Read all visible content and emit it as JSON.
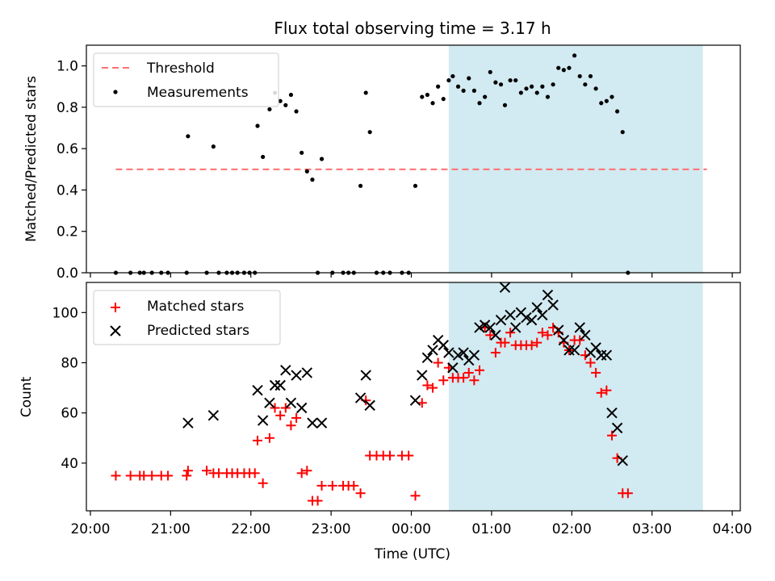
{
  "chart_data": [
    {
      "type": "scatter",
      "title": "Flux total observing time = 3.17 h",
      "xlabel": "",
      "ylabel": "Matched/Predicted stars",
      "xlim": [
        "19:57",
        "04:06"
      ],
      "ylim": [
        0,
        1.1
      ],
      "y_ticks": [
        0.0,
        0.2,
        0.4,
        0.6,
        0.8,
        1.0
      ],
      "y_tick_labels": [
        "0.0",
        "0.2",
        "0.4",
        "0.6",
        "0.8",
        "1.0"
      ],
      "x_ticks": [
        "20:00",
        "21:00",
        "22:00",
        "23:00",
        "00:00",
        "01:00",
        "02:00",
        "03:00",
        "04:00"
      ],
      "grid": false,
      "legend": "upper left",
      "shaded_span": {
        "start": "00:28",
        "end": "03:38",
        "color": "#add8e6"
      },
      "threshold": {
        "name": "Threshold",
        "value": 0.5,
        "start": "20:19",
        "end": "03:41",
        "color": "#ff7070"
      },
      "measurements": {
        "name": "Measurements",
        "color": "#000000",
        "points": [
          [
            "20:19",
            0.0
          ],
          [
            "20:30",
            0.0
          ],
          [
            "20:37",
            0.0
          ],
          [
            "20:40",
            0.0
          ],
          [
            "20:46",
            0.0
          ],
          [
            "20:53",
            0.0
          ],
          [
            "20:58",
            0.0
          ],
          [
            "21:12",
            0.0
          ],
          [
            "21:13",
            0.66
          ],
          [
            "21:27",
            0.0
          ],
          [
            "21:32",
            0.61
          ],
          [
            "21:36",
            0.0
          ],
          [
            "21:42",
            0.0
          ],
          [
            "21:46",
            0.0
          ],
          [
            "21:50",
            0.0
          ],
          [
            "21:55",
            0.0
          ],
          [
            "21:59",
            0.0
          ],
          [
            "22:03",
            0.0
          ],
          [
            "22:05",
            0.71
          ],
          [
            "22:09",
            0.56
          ],
          [
            "22:14",
            0.79
          ],
          [
            "22:18",
            0.87
          ],
          [
            "22:22",
            0.83
          ],
          [
            "22:26",
            0.81
          ],
          [
            "22:30",
            0.86
          ],
          [
            "22:34",
            0.78
          ],
          [
            "22:38",
            0.58
          ],
          [
            "22:42",
            0.49
          ],
          [
            "22:46",
            0.45
          ],
          [
            "22:50",
            0.0
          ],
          [
            "22:53",
            0.55
          ],
          [
            "23:01",
            0.0
          ],
          [
            "23:09",
            0.0
          ],
          [
            "23:13",
            0.0
          ],
          [
            "23:17",
            0.0
          ],
          [
            "23:22",
            0.42
          ],
          [
            "23:26",
            0.87
          ],
          [
            "23:29",
            0.68
          ],
          [
            "23:34",
            0.0
          ],
          [
            "23:39",
            0.0
          ],
          [
            "23:44",
            0.0
          ],
          [
            "23:53",
            0.0
          ],
          [
            "23:58",
            0.0
          ],
          [
            "00:03",
            0.42
          ],
          [
            "00:08",
            0.85
          ],
          [
            "00:12",
            0.86
          ],
          [
            "00:16",
            0.82
          ],
          [
            "00:20",
            0.9
          ],
          [
            "00:24",
            0.84
          ],
          [
            "00:28",
            0.93
          ],
          [
            "00:31",
            0.95
          ],
          [
            "00:35",
            0.9
          ],
          [
            "00:39",
            0.88
          ],
          [
            "00:43",
            0.94
          ],
          [
            "00:47",
            0.88
          ],
          [
            "00:51",
            0.82
          ],
          [
            "00:55",
            0.85
          ],
          [
            "00:59",
            0.97
          ],
          [
            "01:03",
            0.92
          ],
          [
            "01:07",
            0.91
          ],
          [
            "01:10",
            0.81
          ],
          [
            "01:14",
            0.93
          ],
          [
            "01:18",
            0.93
          ],
          [
            "01:22",
            0.87
          ],
          [
            "01:26",
            0.89
          ],
          [
            "01:30",
            0.9
          ],
          [
            "01:34",
            0.87
          ],
          [
            "01:38",
            0.9
          ],
          [
            "01:42",
            0.85
          ],
          [
            "01:46",
            0.91
          ],
          [
            "01:50",
            0.99
          ],
          [
            "01:54",
            0.98
          ],
          [
            "01:58",
            0.99
          ],
          [
            "02:02",
            1.05
          ],
          [
            "02:06",
            0.95
          ],
          [
            "02:10",
            0.91
          ],
          [
            "02:14",
            0.95
          ],
          [
            "02:18",
            0.89
          ],
          [
            "02:22",
            0.82
          ],
          [
            "02:26",
            0.83
          ],
          [
            "02:30",
            0.85
          ],
          [
            "02:34",
            0.78
          ],
          [
            "02:38",
            0.68
          ],
          [
            "02:42",
            0.0
          ]
        ]
      }
    },
    {
      "type": "scatter",
      "title": "",
      "xlabel": "Time (UTC)",
      "ylabel": "Count",
      "xlim": [
        "19:57",
        "04:06"
      ],
      "ylim": [
        21,
        112
      ],
      "y_ticks": [
        40,
        60,
        80,
        100
      ],
      "y_tick_labels": [
        "40",
        "60",
        "80",
        "100"
      ],
      "x_ticks": [
        "20:00",
        "21:00",
        "22:00",
        "23:00",
        "00:00",
        "01:00",
        "02:00",
        "03:00",
        "04:00"
      ],
      "x_tick_labels": [
        "20:00",
        "21:00",
        "22:00",
        "23:00",
        "00:00",
        "01:00",
        "02:00",
        "03:00",
        "04:00"
      ],
      "grid": false,
      "legend": "upper left",
      "shaded_span": {
        "start": "00:28",
        "end": "03:38",
        "color": "#add8e6"
      },
      "series": [
        {
          "name": "Matched stars",
          "marker": "plus",
          "color": "#ff0000",
          "points": [
            [
              "20:19",
              35
            ],
            [
              "20:30",
              35
            ],
            [
              "20:37",
              35
            ],
            [
              "20:40",
              35
            ],
            [
              "20:46",
              35
            ],
            [
              "20:53",
              35
            ],
            [
              "20:58",
              35
            ],
            [
              "21:12",
              35
            ],
            [
              "21:13",
              37
            ],
            [
              "21:27",
              37
            ],
            [
              "21:32",
              36
            ],
            [
              "21:36",
              36
            ],
            [
              "21:42",
              36
            ],
            [
              "21:46",
              36
            ],
            [
              "21:50",
              36
            ],
            [
              "21:55",
              36
            ],
            [
              "21:59",
              36
            ],
            [
              "22:03",
              36
            ],
            [
              "22:05",
              49
            ],
            [
              "22:09",
              32
            ],
            [
              "22:14",
              50
            ],
            [
              "22:18",
              62
            ],
            [
              "22:22",
              59
            ],
            [
              "22:26",
              62
            ],
            [
              "22:30",
              55
            ],
            [
              "22:34",
              58
            ],
            [
              "22:38",
              36
            ],
            [
              "22:42",
              37
            ],
            [
              "22:46",
              25
            ],
            [
              "22:50",
              25
            ],
            [
              "22:53",
              31
            ],
            [
              "23:01",
              31
            ],
            [
              "23:09",
              31
            ],
            [
              "23:13",
              31
            ],
            [
              "23:17",
              31
            ],
            [
              "23:22",
              28
            ],
            [
              "23:26",
              65
            ],
            [
              "23:29",
              43
            ],
            [
              "23:34",
              43
            ],
            [
              "23:39",
              43
            ],
            [
              "23:44",
              43
            ],
            [
              "23:53",
              43
            ],
            [
              "23:58",
              43
            ],
            [
              "00:03",
              27
            ],
            [
              "00:08",
              64
            ],
            [
              "00:12",
              71
            ],
            [
              "00:16",
              70
            ],
            [
              "00:20",
              80
            ],
            [
              "00:24",
              73
            ],
            [
              "00:28",
              78
            ],
            [
              "00:31",
              74
            ],
            [
              "00:35",
              74
            ],
            [
              "00:39",
              74
            ],
            [
              "00:43",
              76
            ],
            [
              "00:47",
              73
            ],
            [
              "00:51",
              77
            ],
            [
              "00:55",
              94
            ],
            [
              "00:59",
              91
            ],
            [
              "01:03",
              84
            ],
            [
              "01:07",
              88
            ],
            [
              "01:10",
              88
            ],
            [
              "01:14",
              92
            ],
            [
              "01:18",
              87
            ],
            [
              "01:22",
              87
            ],
            [
              "01:26",
              87
            ],
            [
              "01:30",
              87
            ],
            [
              "01:34",
              88
            ],
            [
              "01:38",
              92
            ],
            [
              "01:42",
              91
            ],
            [
              "01:46",
              94
            ],
            [
              "01:50",
              92
            ],
            [
              "01:54",
              88
            ],
            [
              "01:58",
              85
            ],
            [
              "02:02",
              89
            ],
            [
              "02:06",
              89
            ],
            [
              "02:10",
              83
            ],
            [
              "02:14",
              80
            ],
            [
              "02:18",
              76
            ],
            [
              "02:22",
              68
            ],
            [
              "02:26",
              69
            ],
            [
              "02:30",
              51
            ],
            [
              "02:34",
              42
            ],
            [
              "02:38",
              28
            ],
            [
              "02:42",
              28
            ]
          ]
        },
        {
          "name": "Predicted stars",
          "marker": "x",
          "color": "#000000",
          "points": [
            [
              "21:13",
              56
            ],
            [
              "21:32",
              59
            ],
            [
              "22:05",
              69
            ],
            [
              "22:09",
              57
            ],
            [
              "22:14",
              64
            ],
            [
              "22:18",
              71
            ],
            [
              "22:22",
              71
            ],
            [
              "22:26",
              77
            ],
            [
              "22:30",
              64
            ],
            [
              "22:34",
              75
            ],
            [
              "22:38",
              62
            ],
            [
              "22:42",
              76
            ],
            [
              "22:46",
              56
            ],
            [
              "22:53",
              56
            ],
            [
              "23:22",
              66
            ],
            [
              "23:26",
              75
            ],
            [
              "23:29",
              63
            ],
            [
              "00:03",
              65
            ],
            [
              "00:08",
              75
            ],
            [
              "00:12",
              82
            ],
            [
              "00:16",
              85
            ],
            [
              "00:20",
              89
            ],
            [
              "00:24",
              87
            ],
            [
              "00:28",
              84
            ],
            [
              "00:31",
              78
            ],
            [
              "00:35",
              83
            ],
            [
              "00:39",
              84
            ],
            [
              "00:43",
              81
            ],
            [
              "00:47",
              83
            ],
            [
              "00:51",
              94
            ],
            [
              "00:55",
              95
            ],
            [
              "00:59",
              94
            ],
            [
              "01:03",
              91
            ],
            [
              "01:07",
              97
            ],
            [
              "01:10",
              110
            ],
            [
              "01:14",
              99
            ],
            [
              "01:18",
              94
            ],
            [
              "01:22",
              100
            ],
            [
              "01:26",
              98
            ],
            [
              "01:30",
              97
            ],
            [
              "01:34",
              102
            ],
            [
              "01:38",
              99
            ],
            [
              "01:42",
              107
            ],
            [
              "01:46",
              103
            ],
            [
              "01:50",
              93
            ],
            [
              "01:54",
              89
            ],
            [
              "01:58",
              85
            ],
            [
              "02:02",
              85
            ],
            [
              "02:06",
              94
            ],
            [
              "02:10",
              91
            ],
            [
              "02:14",
              84
            ],
            [
              "02:18",
              86
            ],
            [
              "02:22",
              83
            ],
            [
              "02:26",
              83
            ],
            [
              "02:30",
              60
            ],
            [
              "02:34",
              54
            ],
            [
              "02:38",
              41
            ]
          ]
        }
      ]
    }
  ]
}
